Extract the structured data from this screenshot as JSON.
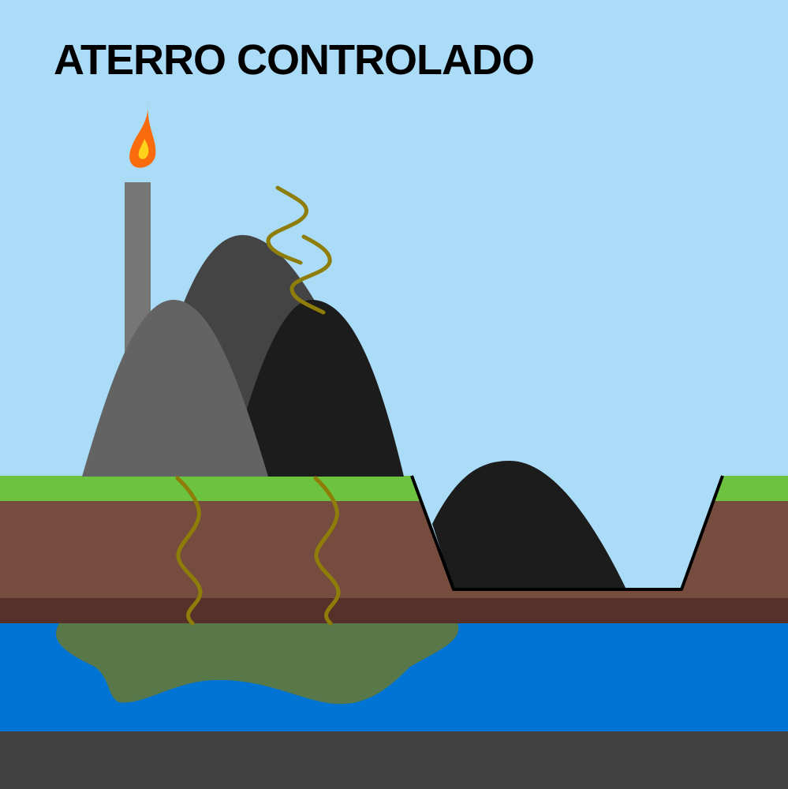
{
  "title": "ATERRO CONTROLADO",
  "colors": {
    "sky": "#aadcf8",
    "grass": "#6dc23f",
    "soil": "#764c3e",
    "deep_soil": "#55312a",
    "groundwater": "#0074d5",
    "bedrock": "#414141",
    "leachate": "#587849",
    "waste_pile_light": "#636363",
    "waste_pile_mid": "#444444",
    "waste_pile_dark": "#1c1c1c",
    "gas_chimney": "#767676",
    "flame_outer": "#fa6b0d",
    "flame_inner": "#ffd21c",
    "gas_wave": "#8e7d08",
    "pit_outline": "#000000"
  }
}
